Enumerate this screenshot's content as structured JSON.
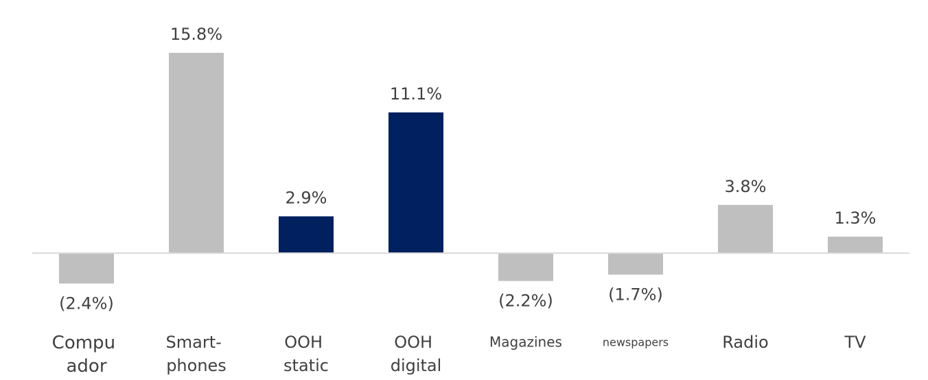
{
  "chart_data": {
    "type": "bar",
    "categories": [
      "Compu ador",
      "Smart- phones",
      "OOH static",
      "OOH digital",
      "Magazines",
      "newspapers",
      "Radio",
      "TV"
    ],
    "values": [
      -2.4,
      15.8,
      2.9,
      11.1,
      -2.2,
      -1.7,
      3.8,
      1.3
    ],
    "value_labels": [
      "(2.4%)",
      "15.8%",
      "2.9%",
      "11.1%",
      "(2.2%)",
      "(1.7%)",
      "3.8%",
      "1.3%"
    ],
    "colors": [
      "#bfbfbf",
      "#bfbfbf",
      "#002060",
      "#002060",
      "#bfbfbf",
      "#bfbfbf",
      "#bfbfbf",
      "#bfbfbf"
    ]
  }
}
